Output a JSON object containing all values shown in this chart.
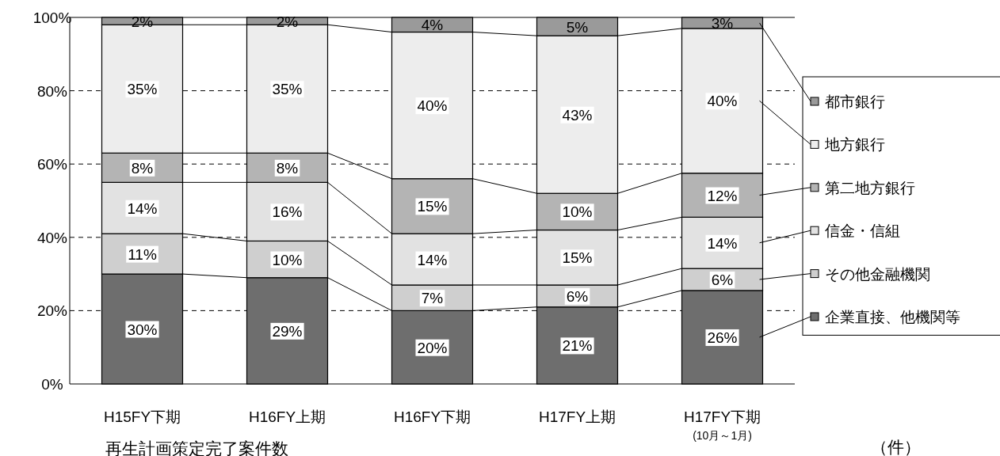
{
  "chart_data": {
    "type": "bar",
    "stacked": true,
    "categories": [
      "H15FY下期",
      "H16FY上期",
      "H16FY下期",
      "H17FY上期",
      "H17FY下期"
    ],
    "series": [
      {
        "name": "企業直接、他機関等",
        "color": "#6e6e6e",
        "values": [
          30,
          29,
          20,
          21,
          25.5
        ],
        "value_labels": [
          "30%",
          "29%",
          "20%",
          "21%",
          "26%"
        ]
      },
      {
        "name": "その他金融機関",
        "color": "#cfcfcf",
        "values": [
          11,
          10,
          7,
          6,
          6
        ],
        "value_labels": [
          "11%",
          "10%",
          "7%",
          "6%",
          "6%"
        ]
      },
      {
        "name": "信金・信組",
        "color": "#e2e2e2",
        "values": [
          14,
          16,
          14,
          15,
          14
        ],
        "value_labels": [
          "14%",
          "16%",
          "14%",
          "15%",
          "14%"
        ]
      },
      {
        "name": "第二地方銀行",
        "color": "#b4b4b4",
        "values": [
          8,
          8,
          15,
          10,
          12
        ],
        "value_labels": [
          "8%",
          "8%",
          "15%",
          "10%",
          "12%"
        ]
      },
      {
        "name": "地方銀行",
        "color": "#ededed",
        "values": [
          35,
          35,
          40,
          43,
          39.5
        ],
        "value_labels": [
          "35%",
          "35%",
          "40%",
          "43%",
          "40%"
        ]
      },
      {
        "name": "都市銀行",
        "color": "#9a9a9a",
        "values": [
          2,
          2,
          4,
          5,
          3
        ],
        "value_labels": [
          "2%",
          "2%",
          "4%",
          "5%",
          "3%"
        ]
      }
    ],
    "ylim": [
      0,
      100
    ],
    "yticks": [
      {
        "value": 0,
        "label": "0%"
      },
      {
        "value": 20,
        "label": "20%"
      },
      {
        "value": 40,
        "label": "40%"
      },
      {
        "value": 60,
        "label": "60%"
      },
      {
        "value": 80,
        "label": "80%"
      },
      {
        "value": 100,
        "label": "100%"
      }
    ],
    "grid": "y",
    "legend": "right",
    "annotations": [
      "(10月～1月)",
      "再生計画策定完了案件数",
      "（件）"
    ]
  }
}
